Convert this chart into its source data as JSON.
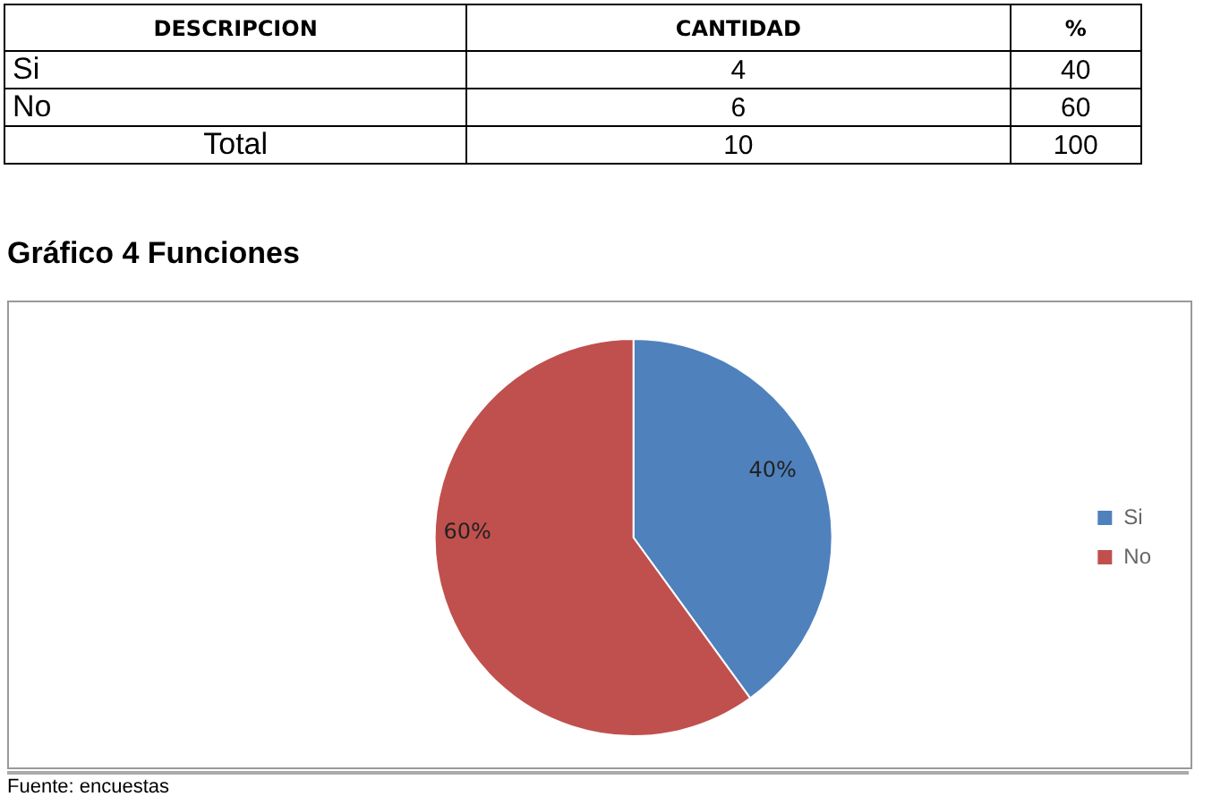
{
  "chart_data": [
    {
      "type": "other",
      "annotations": [
        "DESCRIPCION",
        "CANTIDAD",
        "%",
        "Si",
        "4",
        "40",
        "No",
        "6",
        "60",
        "Total",
        "10",
        "100"
      ]
    },
    {
      "type": "pie",
      "title": "Gráfico 4 Funciones",
      "categories": [
        "Si",
        "No"
      ],
      "values": [
        40,
        60
      ],
      "colors": [
        "#4f81bd",
        "#c0504d"
      ],
      "value_labels": [
        "40%",
        "60%"
      ],
      "legend": "right",
      "annotations": [
        "Fuente: encuestas"
      ]
    }
  ]
}
